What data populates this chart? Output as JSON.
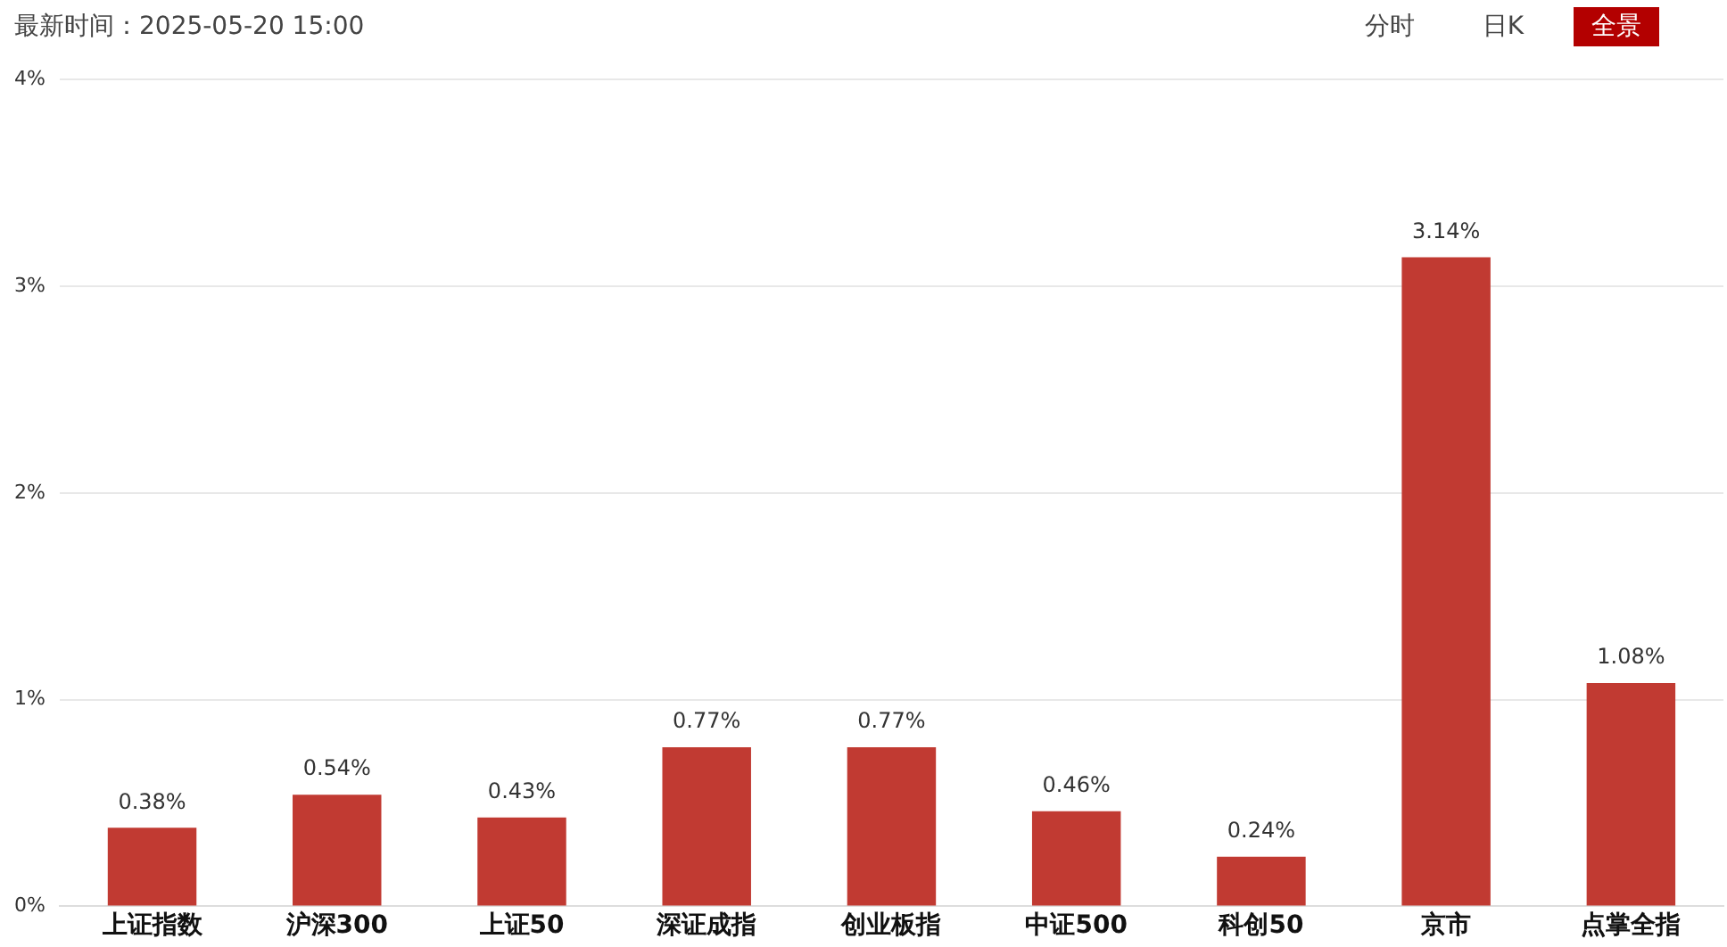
{
  "chart_data": {
    "type": "bar",
    "annotations": [
      "最新时间：2025-05-20 15:00",
      "分时",
      "日K",
      "全景"
    ],
    "categories": [
      "上证指数",
      "沪深300",
      "上证50",
      "深证成指",
      "创业板指",
      "中证500",
      "科创50",
      "京市",
      "点掌全指"
    ],
    "values": [
      0.38,
      0.54,
      0.43,
      0.77,
      0.77,
      0.46,
      0.24,
      3.14,
      1.08
    ],
    "value_labels": [
      "0.38%",
      "0.54%",
      "0.43%",
      "0.77%",
      "0.77%",
      "0.46%",
      "0.24%",
      "3.14%",
      "1.08%"
    ],
    "color": "#c13a32",
    "ylim": [
      0,
      4
    ],
    "yticks": [
      {
        "value": 0,
        "label": "0%"
      },
      {
        "value": 1,
        "label": "1%"
      },
      {
        "value": 2,
        "label": "2%"
      },
      {
        "value": 3,
        "label": "3%"
      },
      {
        "value": 4,
        "label": "4%"
      }
    ],
    "grid": "y",
    "legend": false
  }
}
